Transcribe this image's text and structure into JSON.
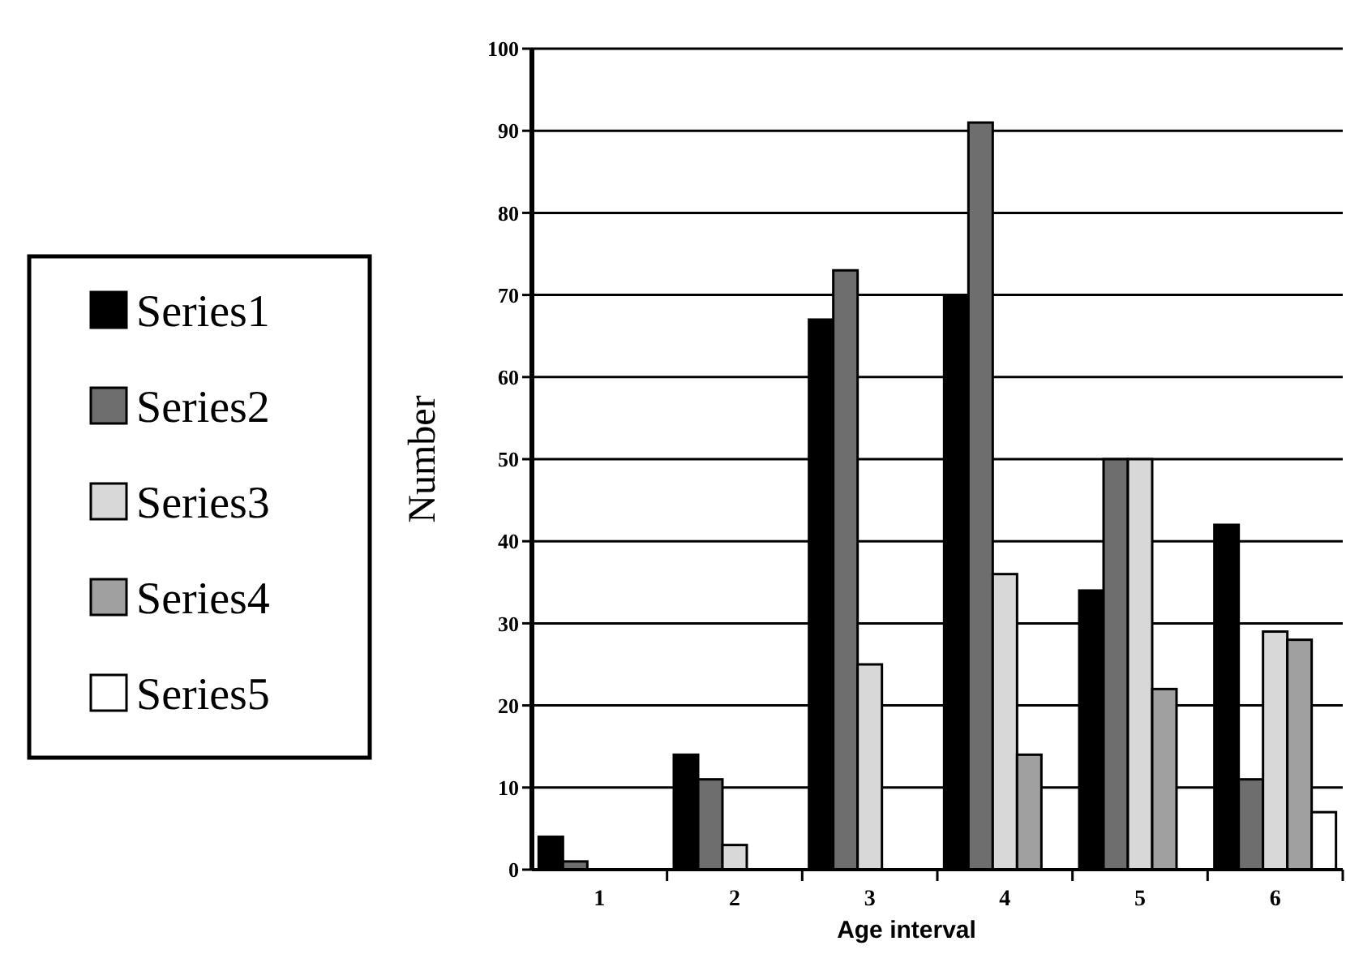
{
  "chart_data": {
    "type": "bar",
    "xlabel": "Age interval",
    "ylabel": "Number",
    "categories": [
      "1",
      "2",
      "3",
      "4",
      "5",
      "6"
    ],
    "series": [
      {
        "name": "Series1",
        "color": "#000000",
        "values": [
          4,
          14,
          67,
          70,
          34,
          42
        ]
      },
      {
        "name": "Series2",
        "color": "#6e6e6e",
        "values": [
          1,
          11,
          73,
          91,
          50,
          11
        ]
      },
      {
        "name": "Series3",
        "color": "#d8d8d8",
        "values": [
          0,
          3,
          25,
          36,
          50,
          29
        ]
      },
      {
        "name": "Series4",
        "color": "#a0a0a0",
        "values": [
          0,
          0,
          0,
          14,
          22,
          28
        ]
      },
      {
        "name": "Series5",
        "color": "#ffffff",
        "values": [
          0,
          0,
          0,
          0,
          0,
          7
        ]
      }
    ],
    "ylim": [
      0,
      100
    ],
    "yticks": [
      0,
      10,
      20,
      30,
      40,
      50,
      60,
      70,
      80,
      90,
      100
    ],
    "grid": "y",
    "legend": "left"
  }
}
